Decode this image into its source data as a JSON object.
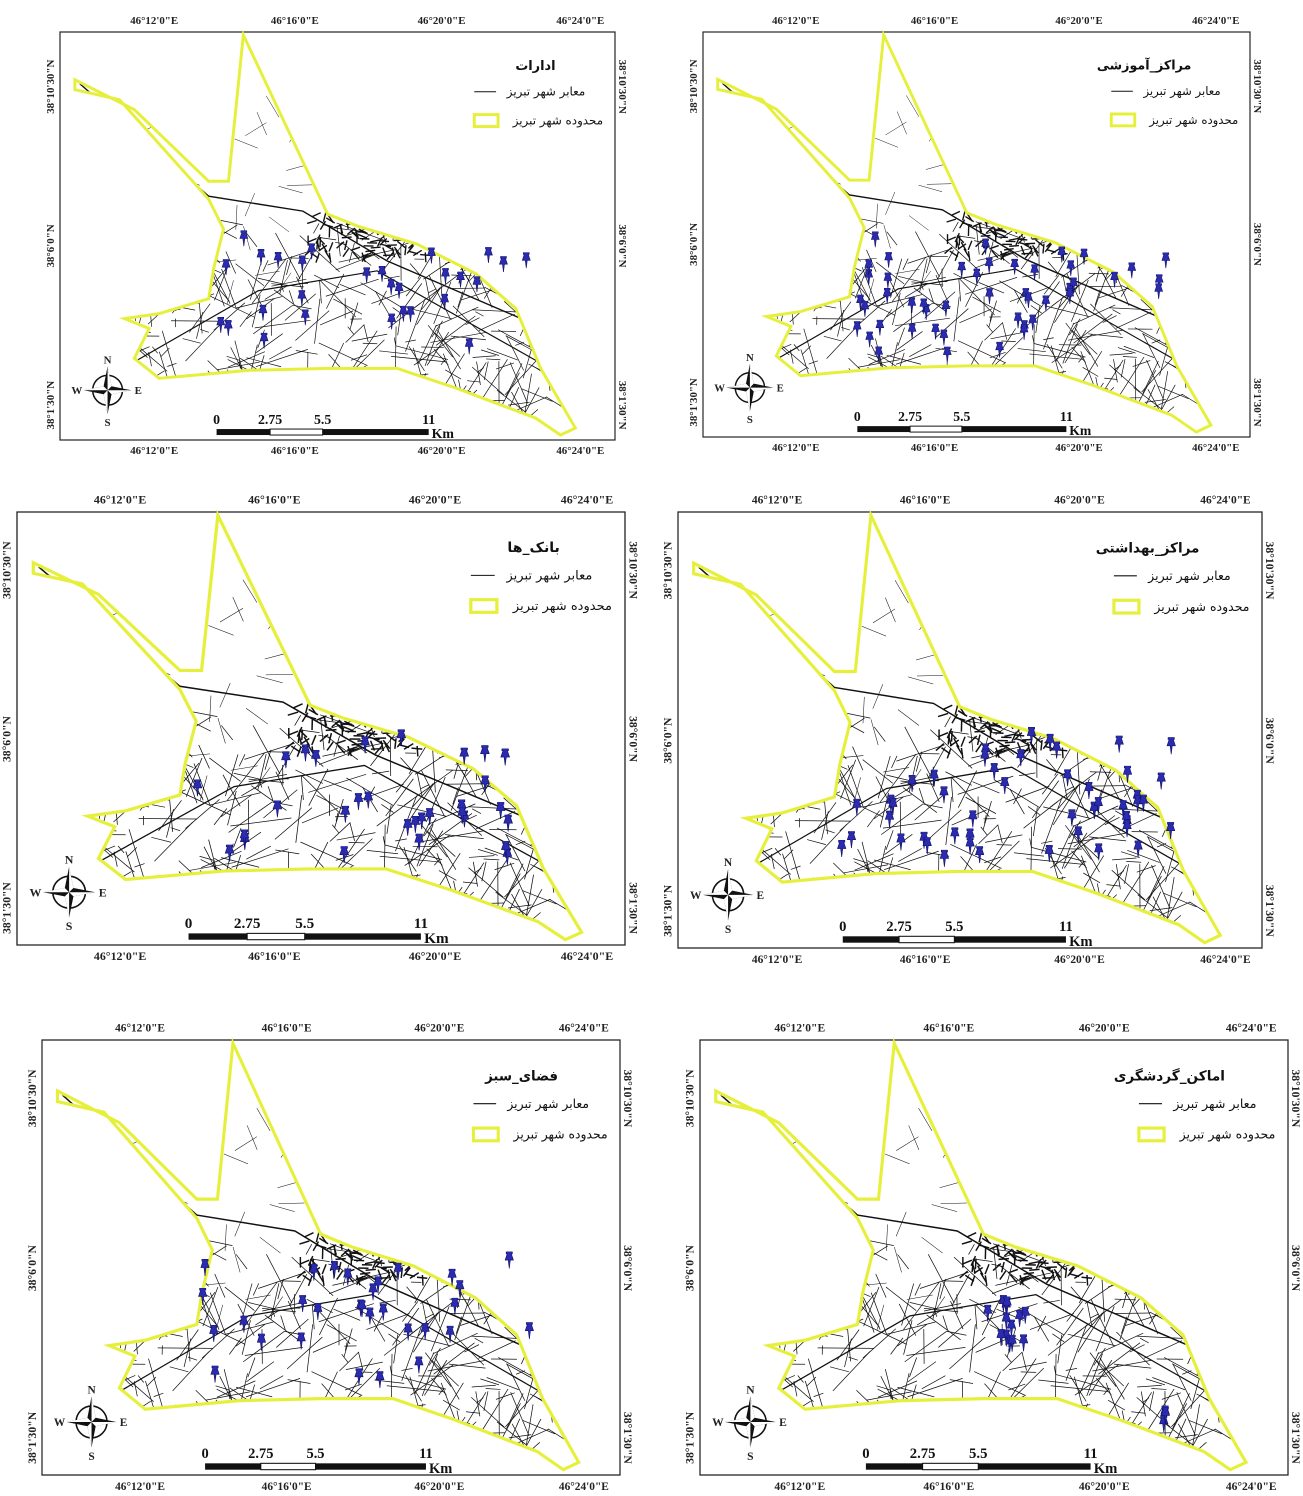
{
  "panels": [
    {
      "title": "ادارات"
    },
    {
      "title": "مراکز_آموزشی"
    },
    {
      "title": "بانک_ها"
    },
    {
      "title": "مراکز_بهداشتی"
    },
    {
      "title": "فضای_سبز"
    },
    {
      "title": "اماکن_گردشگری"
    }
  ],
  "legend": [
    "معابر شهر تبریز",
    "محدوده شهر تبریز"
  ],
  "graticule": {
    "longitude": [
      "46°12'0\"E",
      "46°16'0\"E",
      "46°20'0\"E",
      "46°24'0\"E"
    ],
    "latitude": [
      "38°10'30\"N",
      "38°6'0\"N",
      "38°1'30\"N"
    ]
  },
  "scale_bar": {
    "ticks": [
      "0",
      "2.75",
      "5.5",
      "11"
    ],
    "unit": "Km"
  },
  "compass": {
    "n": "N",
    "s": "S",
    "e": "E",
    "w": "W"
  }
}
